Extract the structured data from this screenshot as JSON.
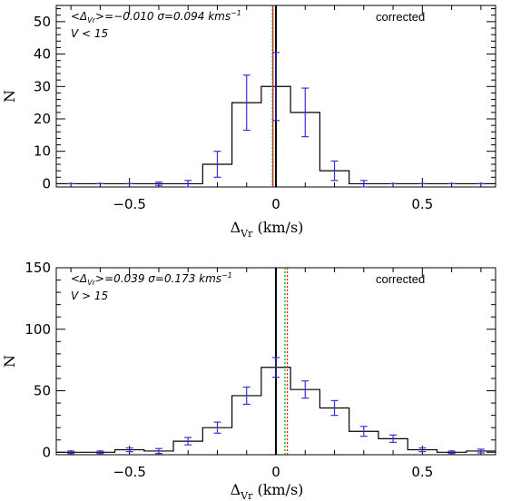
{
  "chart_data": [
    {
      "type": "histogram",
      "panel": "top",
      "xlabel": {
        "main": "Δ",
        "sub": "Vr",
        "unit": " (km/s)"
      },
      "ylabel": "N",
      "xlim": [
        -0.75,
        0.75
      ],
      "ylim": [
        -1,
        55
      ],
      "xticks": [
        -0.5,
        0,
        0.5
      ],
      "xtick_labels": [
        "−0.5",
        "0",
        "0.5"
      ],
      "yticks": [
        0,
        10,
        20,
        30,
        40,
        50
      ],
      "ytick_labels": [
        "0",
        "10",
        "20",
        "30",
        "40",
        "50"
      ],
      "bin_width": 0.1,
      "bins": [
        {
          "x": -0.7,
          "y": 0
        },
        {
          "x": -0.6,
          "y": 0
        },
        {
          "x": -0.5,
          "y": 0
        },
        {
          "x": -0.4,
          "y": 0
        },
        {
          "x": -0.3,
          "y": 0
        },
        {
          "x": -0.2,
          "y": 6
        },
        {
          "x": -0.1,
          "y": 25
        },
        {
          "x": 0.0,
          "y": 30
        },
        {
          "x": 0.1,
          "y": 22
        },
        {
          "x": 0.2,
          "y": 4
        },
        {
          "x": 0.3,
          "y": 0
        },
        {
          "x": 0.4,
          "y": 0
        },
        {
          "x": 0.5,
          "y": 0
        },
        {
          "x": 0.6,
          "y": 0
        },
        {
          "x": 0.7,
          "y": 0
        }
      ],
      "errorbars": [
        {
          "x": -0.7,
          "y": 0,
          "lo": 0,
          "hi": 0
        },
        {
          "x": -0.6,
          "y": 0,
          "lo": 0,
          "hi": 0
        },
        {
          "x": -0.5,
          "y": 0,
          "lo": 0,
          "hi": 0
        },
        {
          "x": -0.4,
          "y": 0,
          "lo": -0.5,
          "hi": 0.5
        },
        {
          "x": -0.3,
          "y": 0,
          "lo": -1,
          "hi": 1
        },
        {
          "x": -0.2,
          "y": 6,
          "lo": 2,
          "hi": 10
        },
        {
          "x": -0.1,
          "y": 25,
          "lo": 16.5,
          "hi": 33.5
        },
        {
          "x": 0.0,
          "y": 30,
          "lo": 19.5,
          "hi": 40.5
        },
        {
          "x": 0.1,
          "y": 22,
          "lo": 14.5,
          "hi": 29.5
        },
        {
          "x": 0.2,
          "y": 4,
          "lo": 1,
          "hi": 7
        },
        {
          "x": 0.3,
          "y": 0,
          "lo": -1,
          "hi": 1
        },
        {
          "x": 0.4,
          "y": 0,
          "lo": 0,
          "hi": 0
        },
        {
          "x": 0.5,
          "y": 0,
          "lo": 0,
          "hi": 0
        },
        {
          "x": 0.6,
          "y": 0,
          "lo": 0,
          "hi": 0
        },
        {
          "x": 0.7,
          "y": 0,
          "lo": 0,
          "hi": 0
        }
      ],
      "vlines": [
        {
          "x": 0.0,
          "color": "#000000",
          "style": "solid"
        },
        {
          "x": -0.01,
          "color": "#ff0000",
          "style": "solid"
        },
        {
          "x": -0.012,
          "color": "#00aa00",
          "style": "dotted"
        }
      ],
      "annotation": {
        "line1_prefix": "<Δ",
        "line1_sub": "Vr",
        "line1_suffix": ">=−0.010   σ=0.094  kms",
        "line1_sup": "−1",
        "line2": "V  <  15"
      },
      "corrected_label": "corrected"
    },
    {
      "type": "histogram",
      "panel": "bottom",
      "xlabel": {
        "main": "Δ",
        "sub": "Vr",
        "unit": " (km/s)"
      },
      "ylabel": "N",
      "xlim": [
        -0.75,
        0.75
      ],
      "ylim": [
        -2,
        150
      ],
      "xticks": [
        -0.5,
        0,
        0.5
      ],
      "xtick_labels": [
        "−0.5",
        "0",
        "0.5"
      ],
      "yticks": [
        0,
        50,
        100,
        150
      ],
      "ytick_labels": [
        "0",
        "50",
        "100",
        "150"
      ],
      "bin_width": 0.1,
      "bins": [
        {
          "x": -0.7,
          "y": 0
        },
        {
          "x": -0.6,
          "y": 0
        },
        {
          "x": -0.5,
          "y": 2
        },
        {
          "x": -0.4,
          "y": 1
        },
        {
          "x": -0.3,
          "y": 9
        },
        {
          "x": -0.2,
          "y": 20
        },
        {
          "x": -0.1,
          "y": 46
        },
        {
          "x": 0.0,
          "y": 69
        },
        {
          "x": 0.1,
          "y": 51
        },
        {
          "x": 0.2,
          "y": 36
        },
        {
          "x": 0.3,
          "y": 17
        },
        {
          "x": 0.4,
          "y": 11
        },
        {
          "x": 0.5,
          "y": 2
        },
        {
          "x": 0.6,
          "y": 0
        },
        {
          "x": 0.7,
          "y": 1
        }
      ],
      "errorbars": [
        {
          "x": -0.7,
          "y": 0,
          "lo": -1,
          "hi": 1
        },
        {
          "x": -0.6,
          "y": 0,
          "lo": -1,
          "hi": 1
        },
        {
          "x": -0.5,
          "y": 2,
          "lo": 0.5,
          "hi": 3.5
        },
        {
          "x": -0.4,
          "y": 1,
          "lo": -1,
          "hi": 3
        },
        {
          "x": -0.3,
          "y": 9,
          "lo": 6,
          "hi": 12
        },
        {
          "x": -0.2,
          "y": 20,
          "lo": 15.5,
          "hi": 24.5
        },
        {
          "x": -0.1,
          "y": 46,
          "lo": 39,
          "hi": 53
        },
        {
          "x": 0.0,
          "y": 69,
          "lo": 61,
          "hi": 77
        },
        {
          "x": 0.1,
          "y": 51,
          "lo": 44,
          "hi": 58
        },
        {
          "x": 0.2,
          "y": 36,
          "lo": 30,
          "hi": 42
        },
        {
          "x": 0.3,
          "y": 17,
          "lo": 13,
          "hi": 21
        },
        {
          "x": 0.4,
          "y": 11,
          "lo": 8,
          "hi": 14
        },
        {
          "x": 0.5,
          "y": 2,
          "lo": 0.5,
          "hi": 3.5
        },
        {
          "x": 0.6,
          "y": 0,
          "lo": -1,
          "hi": 1
        },
        {
          "x": 0.7,
          "y": 1,
          "lo": -0.5,
          "hi": 2.5
        }
      ],
      "vlines": [
        {
          "x": 0.0,
          "color": "#000000",
          "style": "solid"
        },
        {
          "x": 0.039,
          "color": "#ff0000",
          "style": "dotted"
        },
        {
          "x": 0.031,
          "color": "#00aa00",
          "style": "dotted"
        }
      ],
      "annotation": {
        "line1_prefix": "<Δ",
        "line1_sub": "Vr",
        "line1_suffix": ">=0.039    σ=0.173  kms",
        "line1_sup": "−1",
        "line2": "V  >  15"
      },
      "corrected_label": "corrected"
    }
  ],
  "colors": {
    "histogram": "#000000",
    "errorbars": "#3333dd"
  }
}
